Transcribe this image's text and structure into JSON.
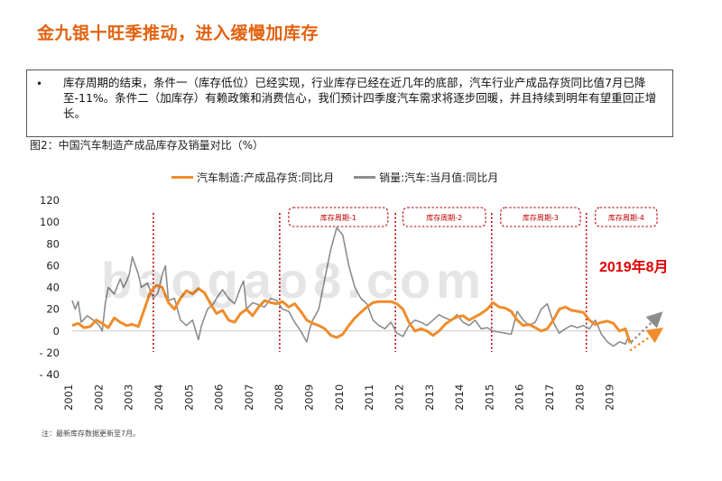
{
  "header": {
    "title": "金九银十旺季推动，进入缓慢加库存"
  },
  "summary": {
    "bullet": "•",
    "text": "库存周期的结束，条件一（库存低位）已经实现，行业库存已经在近几年的底部，汽车行业产成品存货同比值7月已降至-11%。条件二（加库存）有赖政策和消费信心，我们预计四季度汽车需求将逐步回暖，并且持续到明年有望重回正增长。"
  },
  "figure": {
    "title": "图2：中国汽车制造产成品库存及销量对比（%）",
    "footnote": "注：最新库存数据更新至7月。",
    "watermark": "baogao8.com",
    "annotation": "2019年8月"
  },
  "colors": {
    "inventory": "#f08c2c",
    "sales": "#8c8c8c",
    "divider": "#c00000",
    "title": "#e2620f"
  },
  "chart_data": {
    "type": "line",
    "title": "",
    "xlabel": "",
    "ylabel": "",
    "xlim": [
      2001,
      2020.6
    ],
    "ylim": [
      -40,
      120
    ],
    "yticks": [
      120,
      100,
      80,
      60,
      40,
      20,
      0,
      -20,
      -40
    ],
    "ytick_labels": [
      "120",
      "100",
      "80",
      "60",
      "40",
      "20",
      "0",
      "- 20",
      "- 40"
    ],
    "xticks": [
      2001,
      2002,
      2003,
      2004,
      2005,
      2006,
      2007,
      2008,
      2009,
      2010,
      2011,
      2012,
      2013,
      2014,
      2015,
      2016,
      2017,
      2018,
      2019
    ],
    "xtick_labels": [
      "2001",
      "2002",
      "2003",
      "2004",
      "2005",
      "2006",
      "2007",
      "2008",
      "2009",
      "2010",
      "2011",
      "2012",
      "2013",
      "2014",
      "2015",
      "2016",
      "2017",
      "2018",
      "2019"
    ],
    "legend_position": "top",
    "series": [
      {
        "name": "汽车制造:产成品存货:同比月",
        "key": "inventory",
        "points": [
          [
            2001.0,
            5
          ],
          [
            2001.2,
            7
          ],
          [
            2001.4,
            3
          ],
          [
            2001.6,
            4
          ],
          [
            2001.8,
            10
          ],
          [
            2002.0,
            7
          ],
          [
            2002.2,
            3
          ],
          [
            2002.4,
            12
          ],
          [
            2002.6,
            8
          ],
          [
            2002.8,
            5
          ],
          [
            2003.0,
            6
          ],
          [
            2003.2,
            4
          ],
          [
            2003.4,
            20
          ],
          [
            2003.6,
            36
          ],
          [
            2003.8,
            42
          ],
          [
            2004.0,
            40
          ],
          [
            2004.2,
            26
          ],
          [
            2004.4,
            20
          ],
          [
            2004.6,
            30
          ],
          [
            2004.8,
            37
          ],
          [
            2005.0,
            34
          ],
          [
            2005.2,
            39
          ],
          [
            2005.4,
            35
          ],
          [
            2005.6,
            25
          ],
          [
            2005.8,
            16
          ],
          [
            2006.0,
            19
          ],
          [
            2006.2,
            10
          ],
          [
            2006.4,
            8
          ],
          [
            2006.6,
            16
          ],
          [
            2006.8,
            20
          ],
          [
            2007.0,
            14
          ],
          [
            2007.2,
            22
          ],
          [
            2007.4,
            28
          ],
          [
            2007.6,
            26
          ],
          [
            2007.8,
            25
          ],
          [
            2008.0,
            27
          ],
          [
            2008.2,
            22
          ],
          [
            2008.4,
            25
          ],
          [
            2008.6,
            18
          ],
          [
            2008.8,
            10
          ],
          [
            2009.0,
            7
          ],
          [
            2009.2,
            5
          ],
          [
            2009.4,
            2
          ],
          [
            2009.6,
            -4
          ],
          [
            2009.8,
            -6
          ],
          [
            2010.0,
            -3
          ],
          [
            2010.2,
            5
          ],
          [
            2010.4,
            12
          ],
          [
            2010.6,
            17
          ],
          [
            2010.8,
            22
          ],
          [
            2011.0,
            26
          ],
          [
            2011.2,
            27
          ],
          [
            2011.4,
            27
          ],
          [
            2011.6,
            27
          ],
          [
            2011.8,
            25
          ],
          [
            2012.0,
            20
          ],
          [
            2012.2,
            8
          ],
          [
            2012.4,
            0
          ],
          [
            2012.6,
            2
          ],
          [
            2012.8,
            0
          ],
          [
            2013.0,
            -4
          ],
          [
            2013.2,
            0
          ],
          [
            2013.4,
            6
          ],
          [
            2013.6,
            10
          ],
          [
            2013.8,
            13
          ],
          [
            2014.0,
            14
          ],
          [
            2014.2,
            10
          ],
          [
            2014.4,
            13
          ],
          [
            2014.6,
            16
          ],
          [
            2014.8,
            20
          ],
          [
            2015.0,
            26
          ],
          [
            2015.2,
            22
          ],
          [
            2015.4,
            21
          ],
          [
            2015.6,
            18
          ],
          [
            2015.8,
            10
          ],
          [
            2016.0,
            5
          ],
          [
            2016.2,
            6
          ],
          [
            2016.4,
            3
          ],
          [
            2016.6,
            0
          ],
          [
            2016.8,
            2
          ],
          [
            2017.0,
            10
          ],
          [
            2017.2,
            20
          ],
          [
            2017.4,
            22
          ],
          [
            2017.6,
            19
          ],
          [
            2017.8,
            18
          ],
          [
            2018.0,
            17
          ],
          [
            2018.2,
            10
          ],
          [
            2018.4,
            6
          ],
          [
            2018.6,
            8
          ],
          [
            2018.8,
            9
          ],
          [
            2019.0,
            7
          ],
          [
            2019.2,
            0
          ],
          [
            2019.4,
            2
          ],
          [
            2019.55,
            -11
          ]
        ]
      },
      {
        "name": "销量:汽车:当月值:同比月",
        "key": "sales",
        "points": [
          [
            2001.0,
            28
          ],
          [
            2001.1,
            20
          ],
          [
            2001.2,
            27
          ],
          [
            2001.3,
            8
          ],
          [
            2001.5,
            14
          ],
          [
            2001.7,
            10
          ],
          [
            2001.9,
            5
          ],
          [
            2002.0,
            0
          ],
          [
            2002.1,
            25
          ],
          [
            2002.2,
            40
          ],
          [
            2002.4,
            34
          ],
          [
            2002.6,
            48
          ],
          [
            2002.7,
            40
          ],
          [
            2002.8,
            45
          ],
          [
            2002.9,
            52
          ],
          [
            2003.0,
            68
          ],
          [
            2003.1,
            60
          ],
          [
            2003.2,
            52
          ],
          [
            2003.3,
            40
          ],
          [
            2003.5,
            44
          ],
          [
            2003.7,
            30
          ],
          [
            2003.85,
            35
          ],
          [
            2004.0,
            52
          ],
          [
            2004.1,
            60
          ],
          [
            2004.2,
            28
          ],
          [
            2004.4,
            30
          ],
          [
            2004.6,
            10
          ],
          [
            2004.8,
            5
          ],
          [
            2005.0,
            10
          ],
          [
            2005.2,
            -8
          ],
          [
            2005.3,
            5
          ],
          [
            2005.5,
            20
          ],
          [
            2005.7,
            25
          ],
          [
            2005.8,
            30
          ],
          [
            2006.0,
            38
          ],
          [
            2006.2,
            30
          ],
          [
            2006.4,
            25
          ],
          [
            2006.6,
            40
          ],
          [
            2006.7,
            46
          ],
          [
            2006.8,
            20
          ],
          [
            2007.0,
            26
          ],
          [
            2007.2,
            24
          ],
          [
            2007.4,
            22
          ],
          [
            2007.6,
            30
          ],
          [
            2007.8,
            28
          ],
          [
            2008.0,
            20
          ],
          [
            2008.2,
            18
          ],
          [
            2008.4,
            8
          ],
          [
            2008.6,
            0
          ],
          [
            2008.8,
            -10
          ],
          [
            2008.9,
            2
          ],
          [
            2009.0,
            10
          ],
          [
            2009.2,
            20
          ],
          [
            2009.4,
            48
          ],
          [
            2009.6,
            75
          ],
          [
            2009.8,
            95
          ],
          [
            2010.0,
            88
          ],
          [
            2010.2,
            60
          ],
          [
            2010.4,
            40
          ],
          [
            2010.6,
            30
          ],
          [
            2010.8,
            25
          ],
          [
            2011.0,
            10
          ],
          [
            2011.2,
            5
          ],
          [
            2011.4,
            2
          ],
          [
            2011.6,
            8
          ],
          [
            2011.8,
            -2
          ],
          [
            2012.0,
            -5
          ],
          [
            2012.2,
            5
          ],
          [
            2012.4,
            10
          ],
          [
            2012.6,
            8
          ],
          [
            2012.8,
            5
          ],
          [
            2013.0,
            10
          ],
          [
            2013.2,
            15
          ],
          [
            2013.4,
            12
          ],
          [
            2013.6,
            10
          ],
          [
            2013.8,
            15
          ],
          [
            2014.0,
            8
          ],
          [
            2014.2,
            5
          ],
          [
            2014.4,
            10
          ],
          [
            2014.6,
            2
          ],
          [
            2014.8,
            3
          ],
          [
            2015.0,
            0
          ],
          [
            2015.2,
            -1
          ],
          [
            2015.4,
            -2
          ],
          [
            2015.6,
            -3
          ],
          [
            2015.8,
            18
          ],
          [
            2016.0,
            10
          ],
          [
            2016.2,
            5
          ],
          [
            2016.4,
            8
          ],
          [
            2016.6,
            20
          ],
          [
            2016.8,
            25
          ],
          [
            2017.0,
            8
          ],
          [
            2017.2,
            -2
          ],
          [
            2017.4,
            2
          ],
          [
            2017.6,
            5
          ],
          [
            2017.8,
            3
          ],
          [
            2018.0,
            5
          ],
          [
            2018.2,
            2
          ],
          [
            2018.4,
            10
          ],
          [
            2018.6,
            -3
          ],
          [
            2018.8,
            -10
          ],
          [
            2019.0,
            -14
          ],
          [
            2019.2,
            -10
          ],
          [
            2019.4,
            -12
          ],
          [
            2019.5,
            -5
          ],
          [
            2019.6,
            -12
          ]
        ]
      }
    ],
    "dividers": [
      2003.7,
      2007.9,
      2011.75,
      2014.95,
      2018.1
    ],
    "cycles": [
      {
        "label": "库存周期-1",
        "from": 2008.2,
        "to": 2011.5
      },
      {
        "label": "库存周期-2",
        "from": 2012.0,
        "to": 2014.75
      },
      {
        "label": "库存周期-3",
        "from": 2015.25,
        "to": 2017.9
      },
      {
        "label": "库存周期-4",
        "from": 2018.4,
        "to": 2020.6
      }
    ],
    "projections": [
      {
        "key": "sales",
        "from": [
          2019.6,
          -10
        ],
        "to": [
          2020.5,
          14
        ]
      },
      {
        "key": "inventory",
        "from": [
          2019.55,
          -18
        ],
        "to": [
          2020.5,
          0
        ]
      }
    ]
  }
}
